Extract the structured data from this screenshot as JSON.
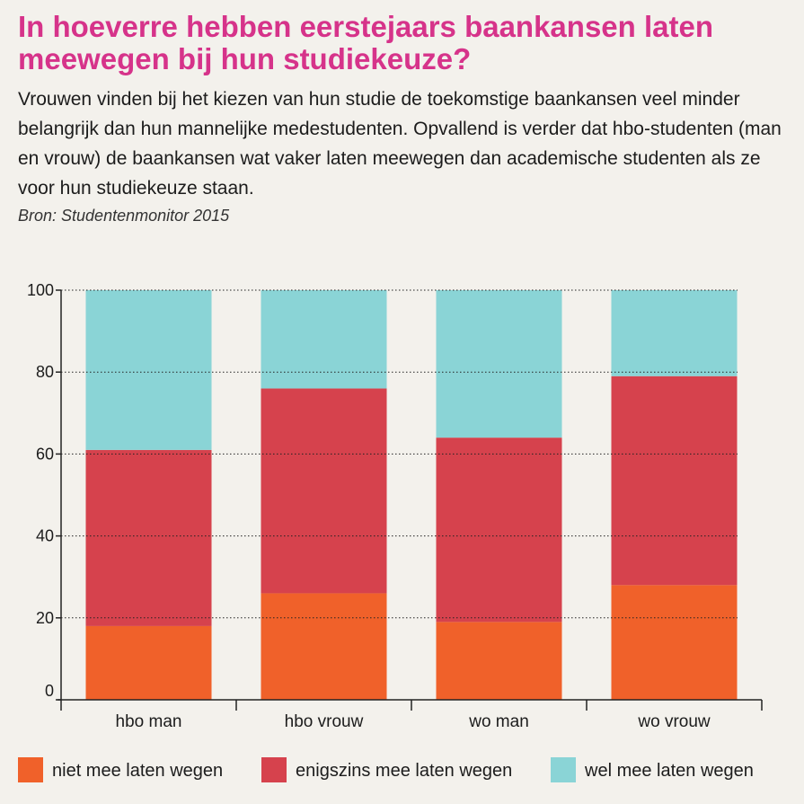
{
  "header": {
    "title": "In hoeverre hebben eerstejaars baankansen laten meewegen bij hun studiekeuze?",
    "subtitle": "Vrouwen vinden bij het kiezen van hun studie de toekomstige baankansen veel minder belangrijk dan hun mannelijke medestudenten. Opvallend is verder dat hbo-studenten (man en vrouw) de baankansen wat vaker laten meewegen dan academische studenten als ze voor hun studiekeuze staan.",
    "source": "Bron: Studentenmonitor 2015"
  },
  "chart_data": {
    "type": "bar",
    "stacked": true,
    "title": "In hoeverre hebben eerstejaars baankansen laten meewegen bij hun studiekeuze?",
    "xlabel": "",
    "ylabel": "",
    "categories": [
      "hbo man",
      "hbo vrouw",
      "wo man",
      "wo vrouw"
    ],
    "series": [
      {
        "name": "niet mee laten wegen",
        "color": "#f0612a",
        "values": [
          18,
          26,
          19,
          28
        ]
      },
      {
        "name": "enigszins mee laten wegen",
        "color": "#d6424d",
        "values": [
          43,
          50,
          45,
          51
        ]
      },
      {
        "name": "wel mee laten wegen",
        "color": "#8ad4d6",
        "values": [
          39,
          24,
          36,
          21
        ]
      }
    ],
    "ylim": [
      0,
      100
    ],
    "yticks": [
      0,
      20,
      40,
      60,
      80,
      100
    ],
    "grid": true,
    "legend": "bottom"
  }
}
